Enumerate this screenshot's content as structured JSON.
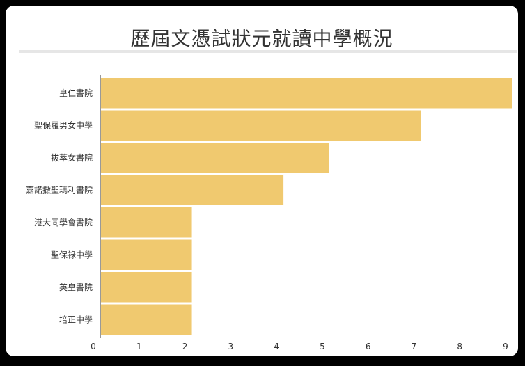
{
  "chart_data": {
    "type": "bar",
    "orientation": "horizontal",
    "title": "歷屆文憑試狀元就讀中學概況",
    "categories": [
      "皇仁書院",
      "聖保羅男女中學",
      "拔萃女書院",
      "嘉諾撒聖瑪利書院",
      "港大同學會書院",
      "聖保祿中學",
      "英皇書院",
      "培正中學"
    ],
    "values": [
      9,
      7,
      5,
      4,
      2,
      2,
      2,
      2
    ],
    "xlim": [
      0,
      9
    ],
    "xticks": [
      "0",
      "1",
      "2",
      "3",
      "4",
      "5",
      "6",
      "7",
      "8",
      "9"
    ],
    "grid": false,
    "legend": "none",
    "bar_color": "#f0c96f"
  }
}
